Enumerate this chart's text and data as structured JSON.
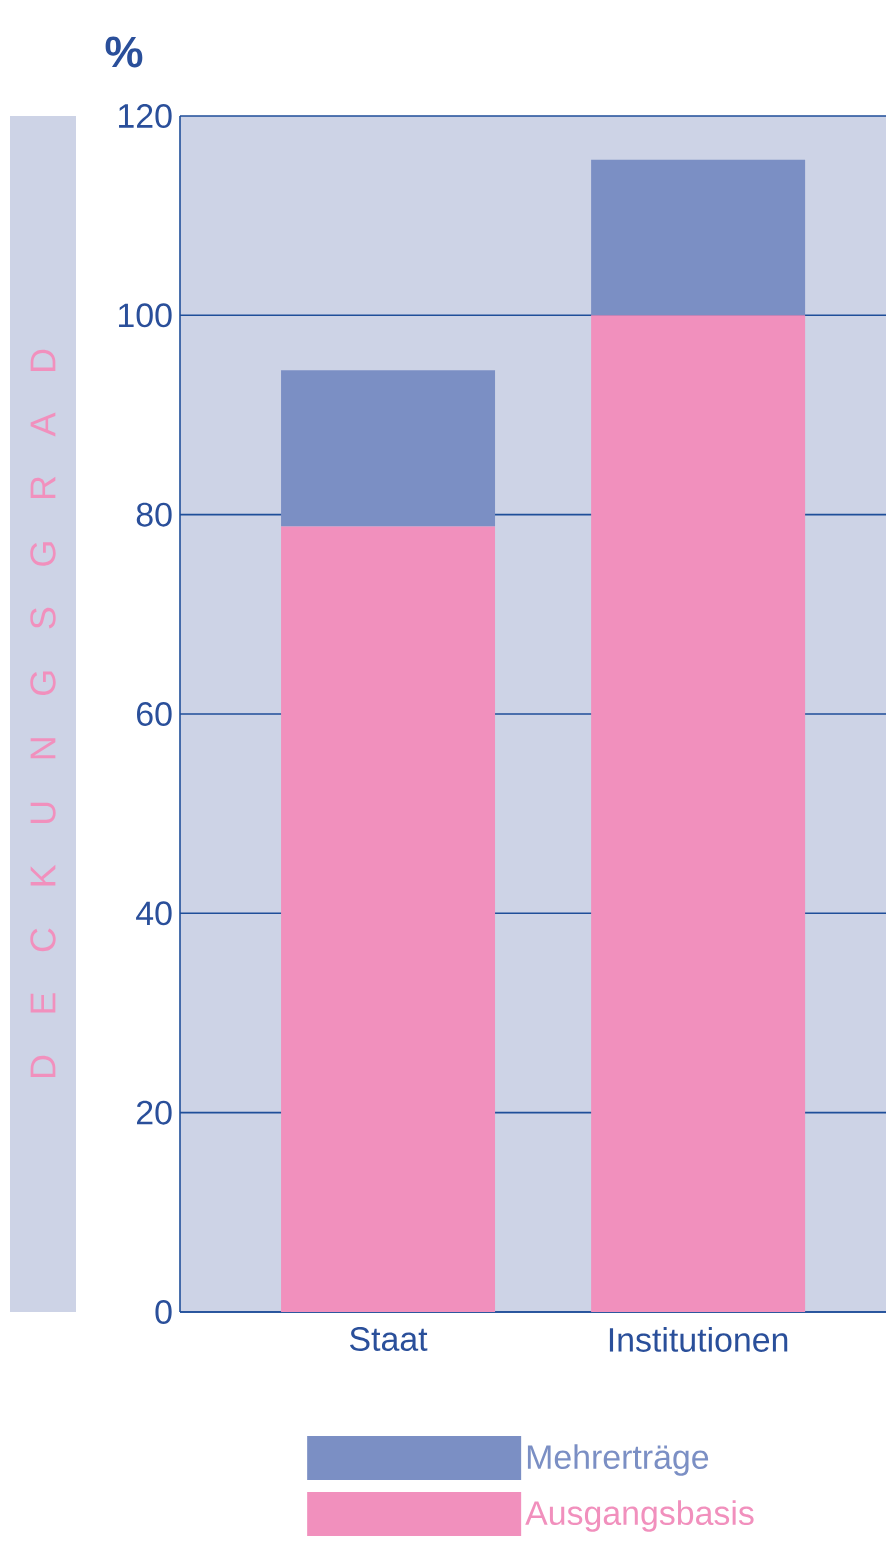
{
  "chart_data": {
    "type": "bar",
    "stacked": true,
    "ylabel": "D E C K U N G S G R A D",
    "annotations": [
      "%"
    ],
    "categories": [
      "Staat",
      "Institutionen"
    ],
    "series": [
      {
        "name": "Ausgangsbasis",
        "color": "#f190bd",
        "values": [
          78.8,
          100
        ]
      },
      {
        "name": "Mehrerträge",
        "color": "#7b8fc4",
        "values": [
          15.7,
          15.6
        ]
      }
    ],
    "ylim": [
      0,
      120
    ],
    "yticks": [
      0,
      20,
      40,
      60,
      80,
      100,
      120
    ],
    "grid": "y",
    "legend": "bottom"
  }
}
